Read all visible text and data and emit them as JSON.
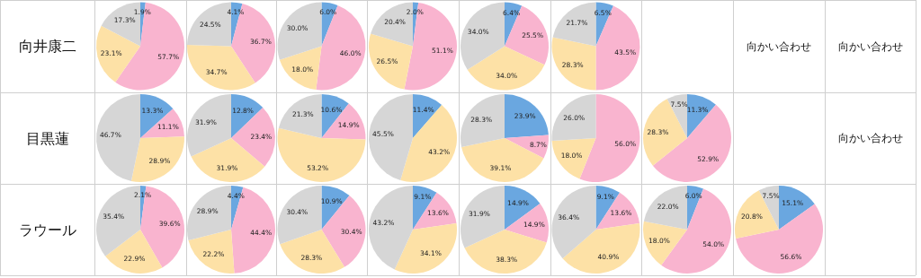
{
  "chart_data": [
    {
      "type": "other",
      "annotations": [
        "向井康二",
        "目黒蓮",
        "ラウール",
        "向かい合わせ",
        "向かい合わせ",
        "向かい合わせ"
      ]
    },
    {
      "type": "pie",
      "categories": [
        null,
        null,
        null,
        null
      ],
      "values": [
        1.9,
        57.7,
        23.1,
        17.3
      ],
      "value_labels": [
        "1.9%",
        "57.7%",
        "23.1%",
        "17.3%"
      ],
      "colors": [
        "#6aa7e0",
        "#f9b4cf",
        "#fde1a6",
        "#d6d6d6"
      ]
    },
    {
      "type": "pie",
      "categories": [
        null,
        null,
        null,
        null
      ],
      "values": [
        4.1,
        36.7,
        34.7,
        24.5
      ],
      "value_labels": [
        "4.1%",
        "36.7%",
        "34.7%",
        "24.5%"
      ],
      "colors": [
        "#6aa7e0",
        "#f9b4cf",
        "#fde1a6",
        "#d6d6d6"
      ]
    },
    {
      "type": "pie",
      "categories": [
        null,
        null,
        null,
        null
      ],
      "values": [
        6.0,
        46.0,
        18.0,
        30.0
      ],
      "value_labels": [
        "6.0%",
        "46.0%",
        "18.0%",
        "30.0%"
      ],
      "colors": [
        "#6aa7e0",
        "#f9b4cf",
        "#fde1a6",
        "#d6d6d6"
      ]
    },
    {
      "type": "pie",
      "categories": [
        null,
        null,
        null,
        null
      ],
      "values": [
        2.0,
        51.1,
        26.5,
        20.4
      ],
      "value_labels": [
        "2.0%",
        "51.1%",
        "26.5%",
        "20.4%"
      ],
      "colors": [
        "#6aa7e0",
        "#f9b4cf",
        "#fde1a6",
        "#d6d6d6"
      ]
    },
    {
      "type": "pie",
      "categories": [
        null,
        null,
        null,
        null
      ],
      "values": [
        6.4,
        25.5,
        34.0,
        34.0
      ],
      "value_labels": [
        "6.4%",
        "25.5%",
        "34.0%",
        "34.0%"
      ],
      "colors": [
        "#6aa7e0",
        "#f9b4cf",
        "#fde1a6",
        "#d6d6d6"
      ]
    },
    {
      "type": "pie",
      "categories": [
        null,
        null,
        null,
        null
      ],
      "values": [
        6.5,
        43.5,
        28.3,
        21.7
      ],
      "value_labels": [
        "6.5%",
        "43.5%",
        "28.3%",
        "21.7%"
      ],
      "colors": [
        "#6aa7e0",
        "#f9b4cf",
        "#fde1a6",
        "#d6d6d6"
      ]
    },
    {
      "type": "pie",
      "categories": [
        null,
        null,
        null,
        null
      ],
      "values": [
        13.3,
        11.1,
        28.9,
        46.7
      ],
      "value_labels": [
        "13.3%",
        "11.1%",
        "28.9%",
        "46.7%"
      ],
      "colors": [
        "#6aa7e0",
        "#f9b4cf",
        "#fde1a6",
        "#d6d6d6"
      ]
    },
    {
      "type": "pie",
      "categories": [
        null,
        null,
        null,
        null
      ],
      "values": [
        12.8,
        23.4,
        31.9,
        31.9
      ],
      "value_labels": [
        "12.8%",
        "23.4%",
        "31.9%",
        "31.9%"
      ],
      "colors": [
        "#6aa7e0",
        "#f9b4cf",
        "#fde1a6",
        "#d6d6d6"
      ]
    },
    {
      "type": "pie",
      "categories": [
        null,
        null,
        null,
        null
      ],
      "values": [
        10.6,
        14.9,
        53.2,
        21.3
      ],
      "value_labels": [
        "10.6%",
        "14.9%",
        "53.2%",
        "21.3%"
      ],
      "colors": [
        "#6aa7e0",
        "#f9b4cf",
        "#fde1a6",
        "#d6d6d6"
      ]
    },
    {
      "type": "pie",
      "categories": [
        null,
        null,
        null
      ],
      "values": [
        11.4,
        43.2,
        45.5
      ],
      "value_labels": [
        "11.4%",
        "43.2%",
        "45.5%"
      ],
      "colors": [
        "#6aa7e0",
        "#fde1a6",
        "#d6d6d6"
      ]
    },
    {
      "type": "pie",
      "categories": [
        null,
        null,
        null,
        null
      ],
      "values": [
        23.9,
        8.7,
        39.1,
        28.3
      ],
      "value_labels": [
        "23.9%",
        "8.7%",
        "39.1%",
        "28.3%"
      ],
      "colors": [
        "#6aa7e0",
        "#f9b4cf",
        "#fde1a6",
        "#d6d6d6"
      ]
    },
    {
      "type": "pie",
      "categories": [
        null,
        null,
        null
      ],
      "values": [
        56.0,
        18.0,
        26.0
      ],
      "value_labels": [
        "56.0%",
        "18.0%",
        "26.0%"
      ],
      "colors": [
        "#f9b4cf",
        "#fde1a6",
        "#d6d6d6"
      ]
    },
    {
      "type": "pie",
      "categories": [
        null,
        null,
        null,
        null
      ],
      "values": [
        11.3,
        52.9,
        28.3,
        7.5
      ],
      "value_labels": [
        "11.3%",
        "52.9%",
        "28.3%",
        "7.5%"
      ],
      "colors": [
        "#6aa7e0",
        "#f9b4cf",
        "#fde1a6",
        "#d6d6d6"
      ]
    },
    {
      "type": "pie",
      "categories": [
        null,
        null,
        null,
        null
      ],
      "values": [
        2.1,
        39.6,
        22.9,
        35.4
      ],
      "value_labels": [
        "2.1%",
        "39.6%",
        "22.9%",
        "35.4%"
      ],
      "colors": [
        "#6aa7e0",
        "#f9b4cf",
        "#fde1a6",
        "#d6d6d6"
      ]
    },
    {
      "type": "pie",
      "categories": [
        null,
        null,
        null,
        null
      ],
      "values": [
        4.4,
        44.4,
        22.2,
        28.9
      ],
      "value_labels": [
        "4.4%",
        "44.4%",
        "22.2%",
        "28.9%"
      ],
      "colors": [
        "#6aa7e0",
        "#f9b4cf",
        "#fde1a6",
        "#d6d6d6"
      ]
    },
    {
      "type": "pie",
      "categories": [
        null,
        null,
        null,
        null
      ],
      "values": [
        10.9,
        30.4,
        28.3,
        30.4
      ],
      "value_labels": [
        "10.9%",
        "30.4%",
        "28.3%",
        "30.4%"
      ],
      "colors": [
        "#6aa7e0",
        "#f9b4cf",
        "#fde1a6",
        "#d6d6d6"
      ]
    },
    {
      "type": "pie",
      "categories": [
        null,
        null,
        null,
        null
      ],
      "values": [
        9.1,
        13.6,
        34.1,
        43.2
      ],
      "value_labels": [
        "9.1%",
        "13.6%",
        "34.1%",
        "43.2%"
      ],
      "colors": [
        "#6aa7e0",
        "#f9b4cf",
        "#fde1a6",
        "#d6d6d6"
      ]
    },
    {
      "type": "pie",
      "categories": [
        null,
        null,
        null,
        null
      ],
      "values": [
        14.9,
        14.9,
        38.3,
        31.9
      ],
      "value_labels": [
        "14.9%",
        "14.9%",
        "38.3%",
        "31.9%"
      ],
      "colors": [
        "#6aa7e0",
        "#f9b4cf",
        "#fde1a6",
        "#d6d6d6"
      ]
    },
    {
      "type": "pie",
      "categories": [
        null,
        null,
        null,
        null
      ],
      "values": [
        9.1,
        13.6,
        40.9,
        36.4
      ],
      "value_labels": [
        "9.1%",
        "13.6%",
        "40.9%",
        "36.4%"
      ],
      "colors": [
        "#6aa7e0",
        "#f9b4cf",
        "#fde1a6",
        "#d6d6d6"
      ]
    },
    {
      "type": "pie",
      "categories": [
        null,
        null,
        null,
        null
      ],
      "values": [
        6.0,
        54.0,
        18.0,
        22.0
      ],
      "value_labels": [
        "6.0%",
        "54.0%",
        "18.0%",
        "22.0%"
      ],
      "colors": [
        "#6aa7e0",
        "#f9b4cf",
        "#fde1a6",
        "#d6d6d6"
      ]
    },
    {
      "type": "pie",
      "categories": [
        null,
        null,
        null,
        null
      ],
      "values": [
        15.1,
        56.6,
        20.8,
        7.5
      ],
      "value_labels": [
        "15.1%",
        "56.6%",
        "20.8%",
        "7.5%"
      ],
      "colors": [
        "#6aa7e0",
        "#f9b4cf",
        "#fde1a6",
        "#d6d6d6"
      ]
    }
  ]
}
